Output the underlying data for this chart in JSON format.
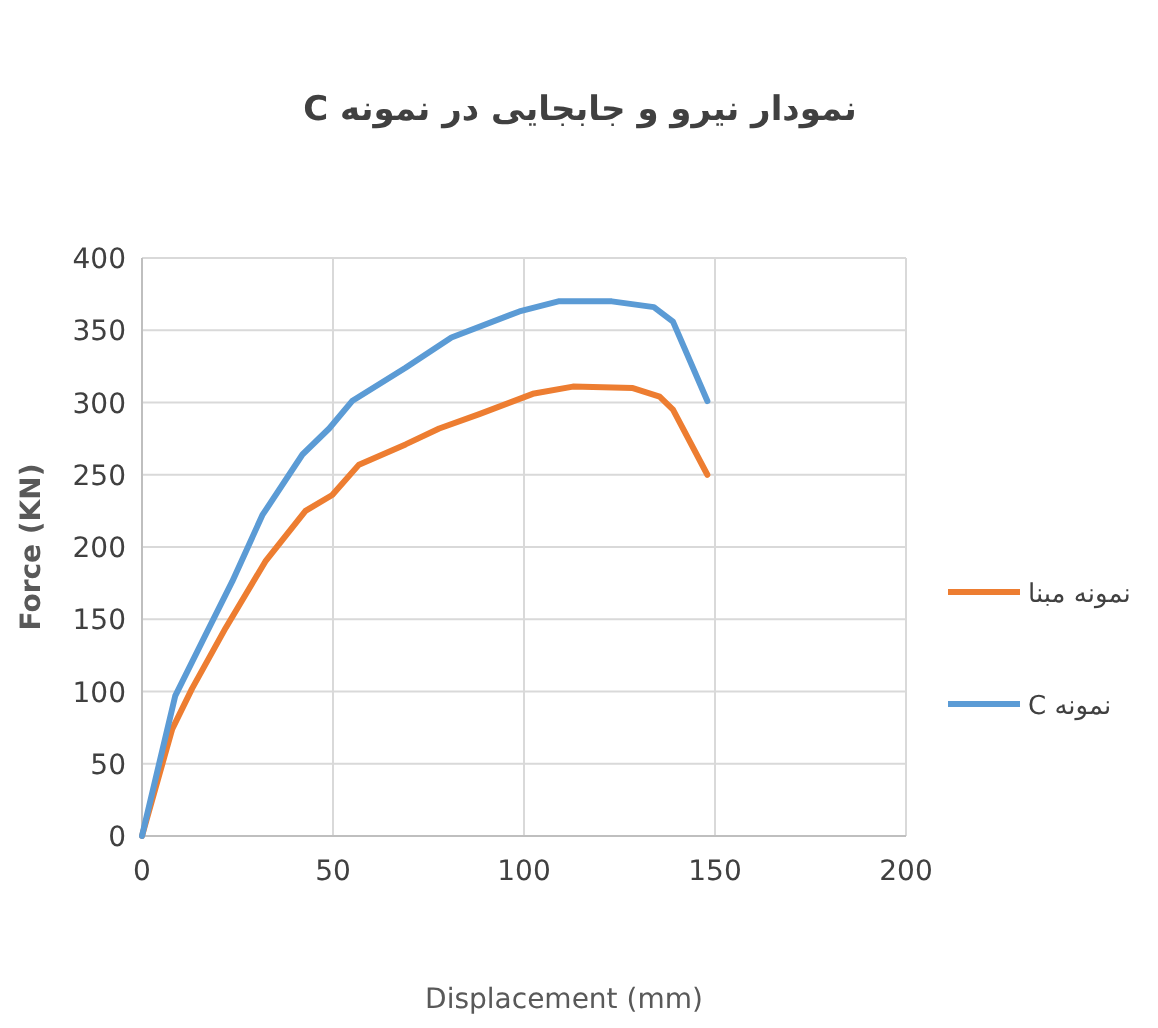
{
  "chart_data": {
    "type": "line",
    "title": "نمودار نیرو و جابجایی در نمونه C",
    "xlabel": "Displacement (mm)",
    "ylabel": "Force (KN)",
    "xlim": [
      0,
      200
    ],
    "xticks": [
      0,
      50,
      100,
      150,
      200
    ],
    "ylim": [
      0,
      400
    ],
    "yticks": [
      0,
      50,
      100,
      150,
      200,
      250,
      300,
      350,
      400
    ],
    "grid": true,
    "legend": "right",
    "marker": "none",
    "line_style": "solid",
    "series": [
      {
        "name": "نمونه مبنا",
        "color": "#ed7d31",
        "x": [
          0,
          7.9,
          13.1,
          21.9,
          32.3,
          42.8,
          49.8,
          56.8,
          69,
          77.8,
          88.3,
          102.3,
          112.8,
          128.5,
          135.5,
          139,
          148
        ],
        "values": [
          0,
          74,
          102,
          144,
          190,
          225,
          236,
          257,
          271,
          282,
          292,
          306,
          311,
          310,
          304,
          295,
          250
        ]
      },
      {
        "name": "نمونه C",
        "color": "#5b9bd5",
        "x": [
          0,
          8.7,
          16.6,
          23.6,
          31.5,
          42,
          49,
          55,
          69,
          81,
          98.8,
          109,
          123,
          134,
          139,
          148
        ],
        "values": [
          0,
          97,
          139,
          176,
          222,
          264,
          282,
          301,
          324,
          345,
          363,
          370,
          370,
          366,
          356,
          301
        ]
      }
    ]
  }
}
